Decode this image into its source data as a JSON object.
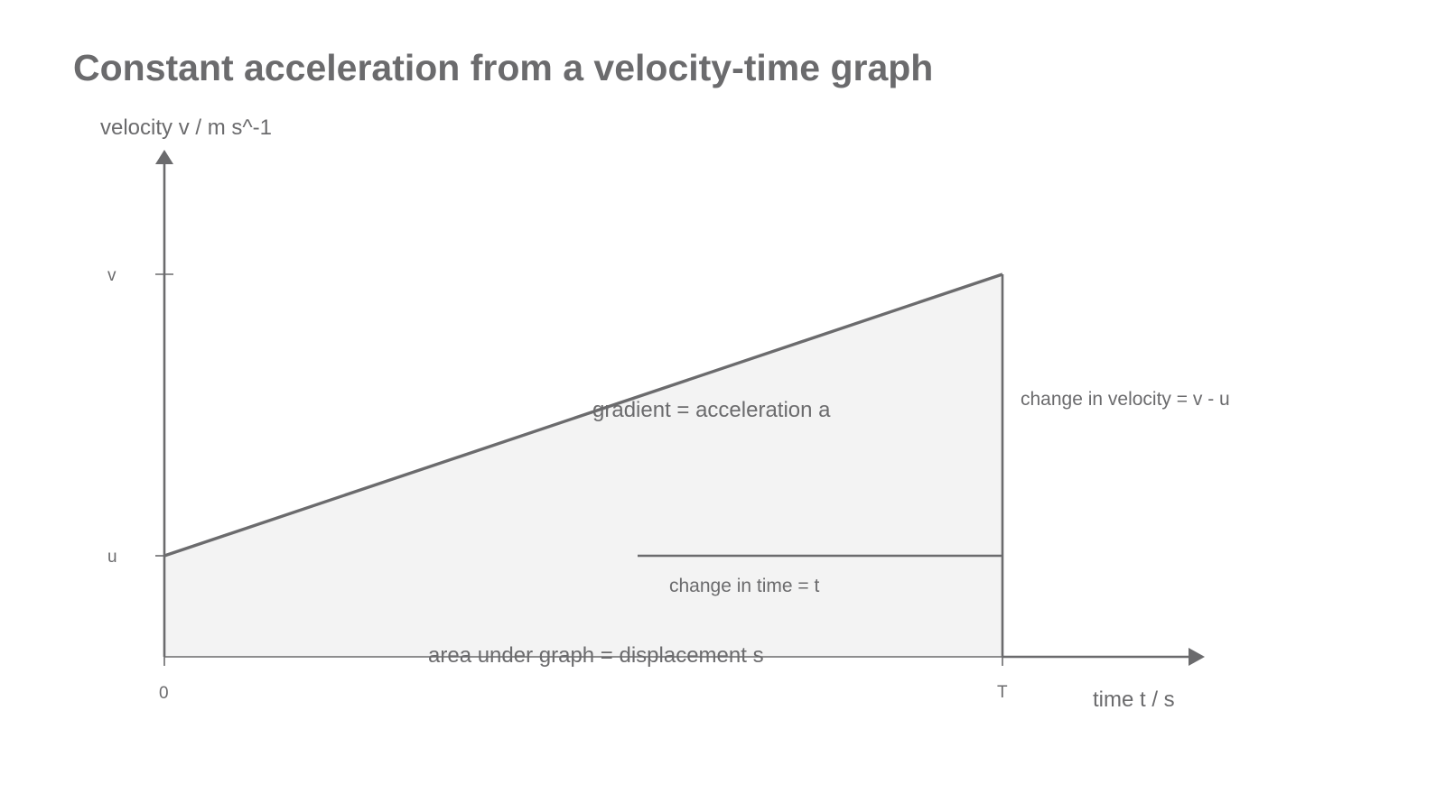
{
  "title": "Constant acceleration from a velocity-time graph",
  "axes": {
    "y_label": "velocity v / m s^-1",
    "x_label": "time t / s"
  },
  "ticks": {
    "y_upper": "v",
    "y_lower": "u",
    "x_origin": "0",
    "x_end": "T"
  },
  "annotations": {
    "gradient": "gradient = acceleration a",
    "change_in_velocity": "change in velocity = v - u",
    "change_in_time": "change in time = t",
    "area": "area under graph = displacement s"
  },
  "colors": {
    "ink": "#6b6b6d",
    "fill": "#f3f3f3"
  }
}
